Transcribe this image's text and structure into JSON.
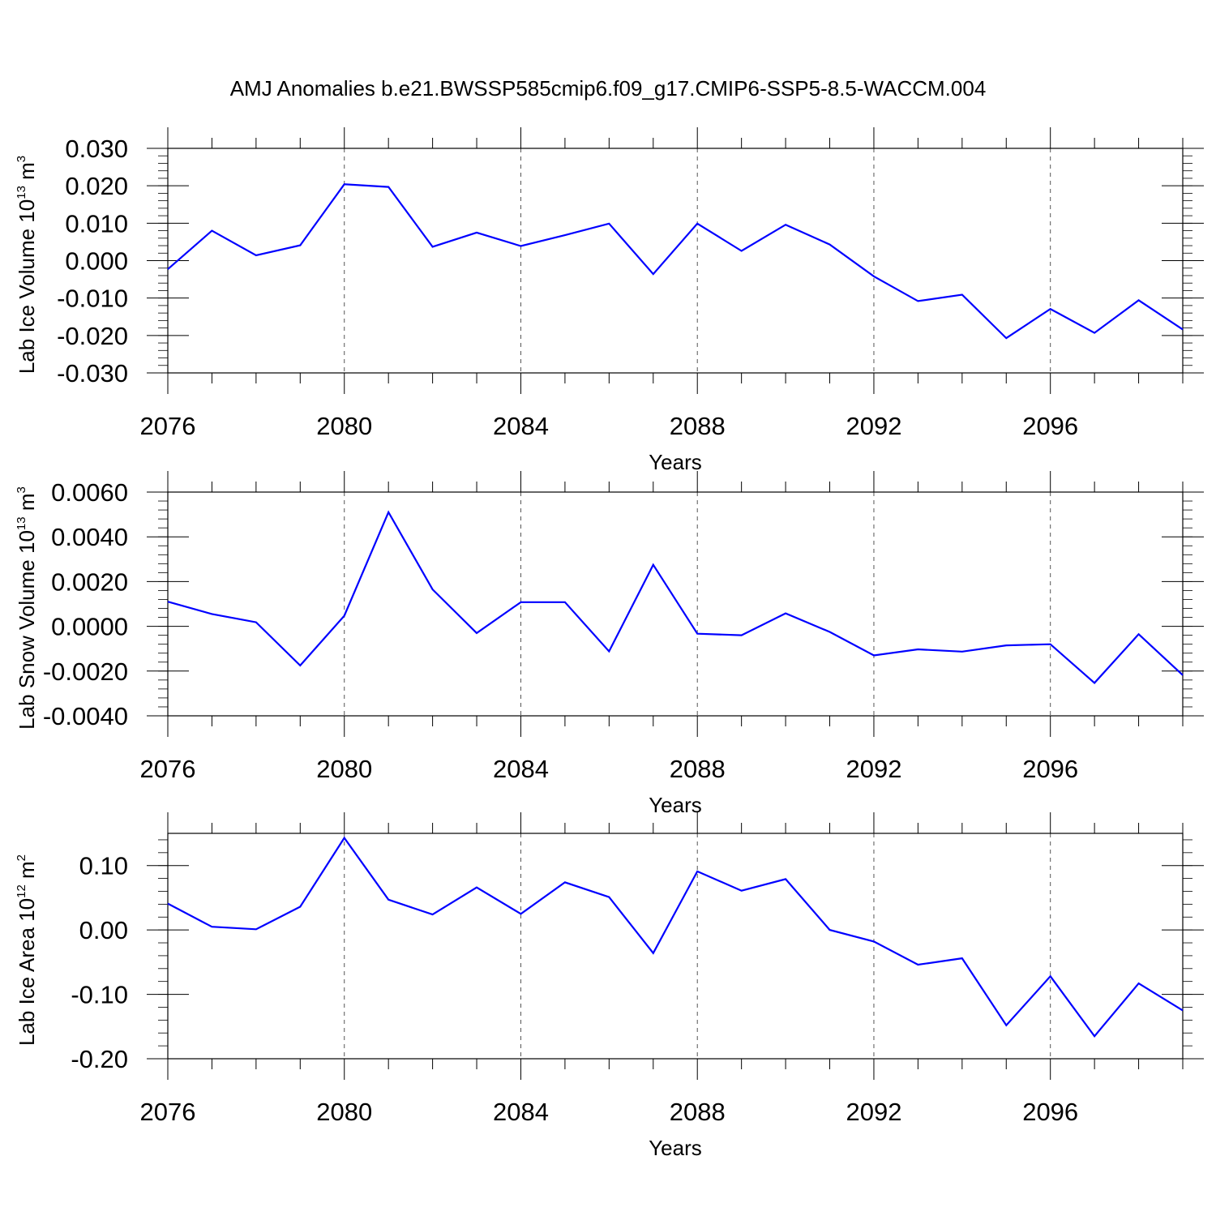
{
  "title": "AMJ Anomalies b.e21.BWSSP585cmip6.f09_g17.CMIP6-SSP5-8.5-WACCM.004",
  "colors": {
    "series": "#0000ff",
    "axis": "#000000",
    "gridline": "#555555"
  },
  "chart_data": [
    {
      "type": "line",
      "xlabel": "Years",
      "ylabel": {
        "text": "Lab Ice Volume 10",
        "exp": "13",
        "unit": " m",
        "unit_exp": "3"
      },
      "x": [
        2076,
        2077,
        2078,
        2079,
        2080,
        2081,
        2082,
        2083,
        2084,
        2085,
        2086,
        2087,
        2088,
        2089,
        2090,
        2091,
        2092,
        2093,
        2094,
        2095,
        2096,
        2097,
        2098,
        2099
      ],
      "values": [
        -0.0023,
        0.008,
        0.0014,
        0.0041,
        0.0204,
        0.0197,
        0.0037,
        0.0075,
        0.0039,
        0.0068,
        0.0099,
        -0.0036,
        0.0099,
        0.0026,
        0.0096,
        0.0043,
        -0.0042,
        -0.0108,
        -0.0091,
        -0.0207,
        -0.0129,
        -0.0193,
        -0.0106,
        -0.0184
      ],
      "xlim": [
        2076,
        2099
      ],
      "ylim": [
        -0.03,
        0.03
      ],
      "yticks": [
        0.03,
        0.02,
        0.01,
        0.0,
        -0.01,
        -0.02,
        -0.03
      ],
      "yticklabels": [
        "0.030",
        "0.020",
        "0.010",
        "0.000",
        "-0.010",
        "-0.020",
        "-0.030"
      ],
      "ymin_step": 0.002,
      "xticks": [
        2076,
        2080,
        2084,
        2088,
        2092,
        2096
      ],
      "xticklabels": [
        "2076",
        "2080",
        "2084",
        "2088",
        "2092",
        "2096"
      ],
      "grid": "dashed vertical at major x ticks"
    },
    {
      "type": "line",
      "xlabel": "Years",
      "ylabel": {
        "text": "Lab Snow Volume 10",
        "exp": "13",
        "unit": " m",
        "unit_exp": "3"
      },
      "x": [
        2076,
        2077,
        2078,
        2079,
        2080,
        2081,
        2082,
        2083,
        2084,
        2085,
        2086,
        2087,
        2088,
        2089,
        2090,
        2091,
        2092,
        2093,
        2094,
        2095,
        2096,
        2097,
        2098,
        2099
      ],
      "values": [
        0.0011,
        0.00055,
        0.00018,
        -0.00175,
        0.00047,
        0.0051,
        0.00165,
        -0.0003,
        0.00108,
        0.00108,
        -0.00112,
        0.00275,
        -0.00033,
        -0.0004,
        0.00058,
        -0.00025,
        -0.0013,
        -0.00103,
        -0.00113,
        -0.00085,
        -0.0008,
        -0.00253,
        -0.00035,
        -0.00218
      ],
      "xlim": [
        2076,
        2099
      ],
      "ylim": [
        -0.004,
        0.006
      ],
      "yticks": [
        0.006,
        0.004,
        0.002,
        0.0,
        -0.002,
        -0.004
      ],
      "yticklabels": [
        "0.0060",
        "0.0040",
        "0.0020",
        "0.0000",
        "-0.0020",
        "-0.0040"
      ],
      "ymin_step": 0.0004,
      "xticks": [
        2076,
        2080,
        2084,
        2088,
        2092,
        2096
      ],
      "xticklabels": [
        "2076",
        "2080",
        "2084",
        "2088",
        "2092",
        "2096"
      ],
      "grid": "dashed vertical at major x ticks"
    },
    {
      "type": "line",
      "xlabel": "Years",
      "ylabel": {
        "text": "Lab Ice Area 10",
        "exp": "12",
        "unit": " m",
        "unit_exp": "2"
      },
      "x": [
        2076,
        2077,
        2078,
        2079,
        2080,
        2081,
        2082,
        2083,
        2084,
        2085,
        2086,
        2087,
        2088,
        2089,
        2090,
        2091,
        2092,
        2093,
        2094,
        2095,
        2096,
        2097,
        2098,
        2099
      ],
      "values": [
        0.041,
        0.005,
        0.001,
        0.036,
        0.143,
        0.047,
        0.024,
        0.066,
        0.025,
        0.074,
        0.051,
        -0.036,
        0.091,
        0.061,
        0.079,
        0.0,
        -0.018,
        -0.054,
        -0.044,
        -0.148,
        -0.072,
        -0.165,
        -0.083,
        -0.125
      ],
      "xlim": [
        2076,
        2099
      ],
      "ylim": [
        -0.2,
        0.15
      ],
      "yticks": [
        0.1,
        0.0,
        -0.1,
        -0.2
      ],
      "yticklabels": [
        "0.10",
        "0.00",
        "-0.10",
        "-0.20"
      ],
      "ymin_step": 0.02,
      "xticks": [
        2076,
        2080,
        2084,
        2088,
        2092,
        2096
      ],
      "xticklabels": [
        "2076",
        "2080",
        "2084",
        "2088",
        "2092",
        "2096"
      ],
      "grid": "dashed vertical at major x ticks"
    }
  ]
}
